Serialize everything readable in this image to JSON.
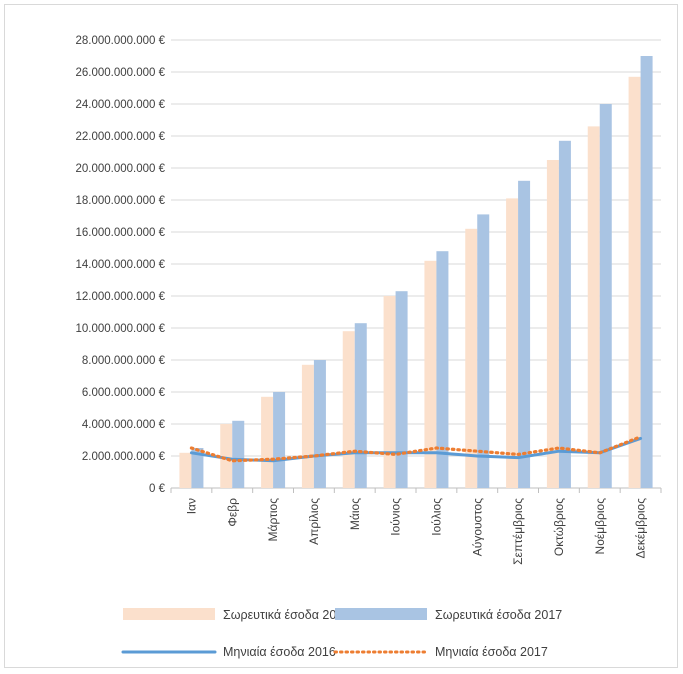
{
  "chart_data": {
    "type": "bar",
    "categories": [
      "Ιαν",
      "Φεβρ",
      "Μάρτιος",
      "Απρίλιος",
      "Μάιος",
      "Ιούνιος",
      "Ιούλιος",
      "Αύγουστος",
      "Σεπτέμβριος",
      "Οκτώβριος",
      "Νοέμβριος",
      "Δεκέμβριος"
    ],
    "ylim": [
      0,
      28000000000
    ],
    "yticks": [
      "0 €",
      "2.000.000.000 €",
      "4.000.000.000 €",
      "6.000.000.000 €",
      "8.000.000.000 €",
      "10.000.000.000 €",
      "12.000.000.000 €",
      "14.000.000.000 €",
      "16.000.000.000 €",
      "18.000.000.000 €",
      "20.000.000.000 €",
      "22.000.000.000 €",
      "24.000.000.000 €",
      "26.000.000.000 €",
      "28.000.000.000 €"
    ],
    "grid": true,
    "legend_position": "bottom",
    "series": [
      {
        "name": "Σωρευτικά έσοδα 2016",
        "kind": "bar",
        "color": "#fbe0cc",
        "values": [
          2200000000,
          4000000000,
          5700000000,
          7700000000,
          9800000000,
          12000000000,
          14200000000,
          16200000000,
          18100000000,
          20500000000,
          22600000000,
          25700000000
        ]
      },
      {
        "name": "Σωρευτικά έσοδα 2017",
        "kind": "bar",
        "color": "#a9c4e3",
        "values": [
          2500000000,
          4200000000,
          6000000000,
          8000000000,
          10300000000,
          12300000000,
          14800000000,
          17100000000,
          19200000000,
          21700000000,
          24000000000,
          27000000000
        ]
      },
      {
        "name": "Μηνιαία έσοδα 2016",
        "kind": "line",
        "style": "solid",
        "color": "#5b9bd5",
        "values": [
          2200000000,
          1800000000,
          1700000000,
          2000000000,
          2200000000,
          2200000000,
          2200000000,
          2000000000,
          1900000000,
          2300000000,
          2200000000,
          3100000000
        ]
      },
      {
        "name": "Μηνιαία έσοδα 2017",
        "kind": "line",
        "style": "dotted",
        "color": "#ed7d31",
        "values": [
          2500000000,
          1700000000,
          1800000000,
          2000000000,
          2300000000,
          2100000000,
          2500000000,
          2300000000,
          2100000000,
          2500000000,
          2200000000,
          3200000000
        ]
      }
    ]
  }
}
